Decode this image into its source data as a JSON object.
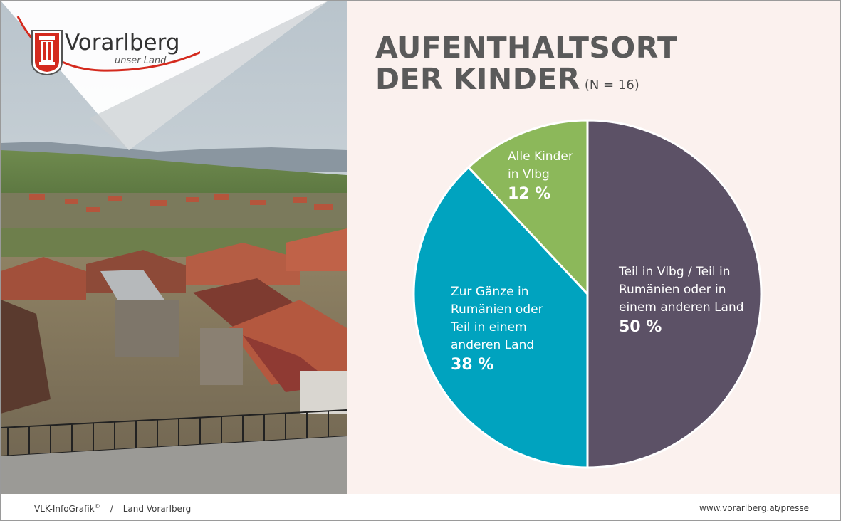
{
  "brand": {
    "name": "Vorarlberg",
    "tagline": "unser Land",
    "accent": "#d42a1e"
  },
  "title": {
    "line1": "AUFENTHALTSORT",
    "line2": "DER KINDER",
    "sample": "(N = 16)"
  },
  "chart_data": {
    "type": "pie",
    "start": "12 o'clock, clockwise",
    "slices": [
      {
        "label_lines": [
          "Teil in Vlbg / Teil in",
          "Rumänien oder in",
          "einem anderen Land"
        ],
        "value_label": "50 %",
        "value": 50,
        "color": "#5c5166"
      },
      {
        "label_lines": [
          "Zur Gänze in",
          "Rumänien oder",
          "Teil in einem",
          "anderen Land"
        ],
        "value_label": "38 %",
        "value": 38,
        "color": "#00a3bf"
      },
      {
        "label_lines": [
          "Alle Kinder",
          "in Vlbg"
        ],
        "value_label": "12 %",
        "value": 12,
        "color": "#8cb85a"
      }
    ]
  },
  "footer": {
    "credit": "VLK-InfoGrafik",
    "credit_mark": "©",
    "separator": "/",
    "source": "Land Vorarlberg",
    "url": "www.vorarlberg.at/presse"
  }
}
